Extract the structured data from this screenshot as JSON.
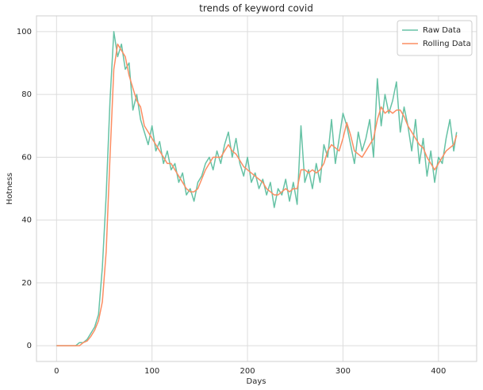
{
  "chart_data": {
    "type": "line",
    "title": "trends of keyword covid",
    "x_label": "Days",
    "y_label": "Hotness",
    "x": [
      0,
      4,
      8,
      12,
      16,
      20,
      24,
      28,
      32,
      36,
      40,
      44,
      48,
      52,
      56,
      60,
      64,
      68,
      72,
      76,
      80,
      84,
      88,
      92,
      96,
      100,
      104,
      108,
      112,
      116,
      120,
      124,
      128,
      132,
      136,
      140,
      144,
      148,
      152,
      156,
      160,
      164,
      168,
      172,
      176,
      180,
      184,
      188,
      192,
      196,
      200,
      204,
      208,
      212,
      216,
      220,
      224,
      228,
      232,
      236,
      240,
      244,
      248,
      252,
      256,
      260,
      264,
      268,
      272,
      276,
      280,
      284,
      288,
      292,
      296,
      300,
      304,
      308,
      312,
      316,
      320,
      324,
      328,
      332,
      336,
      340,
      344,
      348,
      352,
      356,
      360,
      364,
      368,
      372,
      376,
      380,
      384,
      388,
      392,
      396,
      400,
      404,
      408,
      412,
      416,
      419
    ],
    "series": [
      {
        "name": "Raw Data",
        "color": "#66c2a5",
        "values": [
          0,
          0,
          0,
          0,
          0,
          0,
          1,
          1,
          2,
          4,
          6,
          10,
          25,
          48,
          78,
          100,
          92,
          96,
          88,
          90,
          75,
          80,
          72,
          68,
          64,
          70,
          62,
          65,
          58,
          62,
          56,
          58,
          52,
          55,
          48,
          50,
          46,
          52,
          54,
          58,
          60,
          56,
          62,
          58,
          64,
          68,
          60,
          66,
          58,
          54,
          60,
          52,
          55,
          50,
          53,
          48,
          52,
          44,
          50,
          48,
          53,
          46,
          52,
          45,
          70,
          52,
          56,
          50,
          58,
          52,
          64,
          60,
          72,
          58,
          66,
          74,
          70,
          64,
          58,
          68,
          62,
          66,
          72,
          60,
          85,
          70,
          80,
          74,
          78,
          84,
          68,
          76,
          70,
          62,
          72,
          58,
          66,
          54,
          62,
          52,
          60,
          58,
          66,
          72,
          62,
          68
        ]
      },
      {
        "name": "Rolling Data",
        "color": "#fc8d62",
        "values": [
          0,
          0,
          0,
          0,
          0,
          0,
          0,
          1,
          1.5,
          3,
          5,
          8,
          14,
          30,
          60,
          88,
          96,
          94,
          92,
          86,
          82,
          78,
          76,
          70,
          68,
          66,
          64,
          62,
          60,
          58,
          58,
          56,
          54,
          52,
          50,
          49,
          49,
          50,
          53,
          56,
          58,
          60,
          60,
          60,
          62,
          64,
          62,
          61,
          59,
          57,
          56,
          55,
          54,
          53,
          52,
          50,
          49,
          48,
          48,
          49,
          50,
          49,
          50,
          50,
          56,
          56,
          55,
          56,
          55,
          56,
          58,
          62,
          64,
          63,
          62,
          66,
          71,
          67,
          62,
          61,
          60,
          62,
          64,
          66,
          72,
          76,
          74,
          75,
          74,
          75,
          75,
          73,
          70,
          68,
          66,
          64,
          63,
          60,
          58,
          56,
          58,
          60,
          62,
          63,
          64,
          67
        ]
      }
    ],
    "xlim": [
      -21,
      440
    ],
    "ylim": [
      -5,
      105
    ],
    "xticks": [
      0,
      100,
      200,
      300,
      400
    ],
    "yticks": [
      0,
      20,
      40,
      60,
      80,
      100
    ],
    "grid": true,
    "legend": "upper-right"
  }
}
